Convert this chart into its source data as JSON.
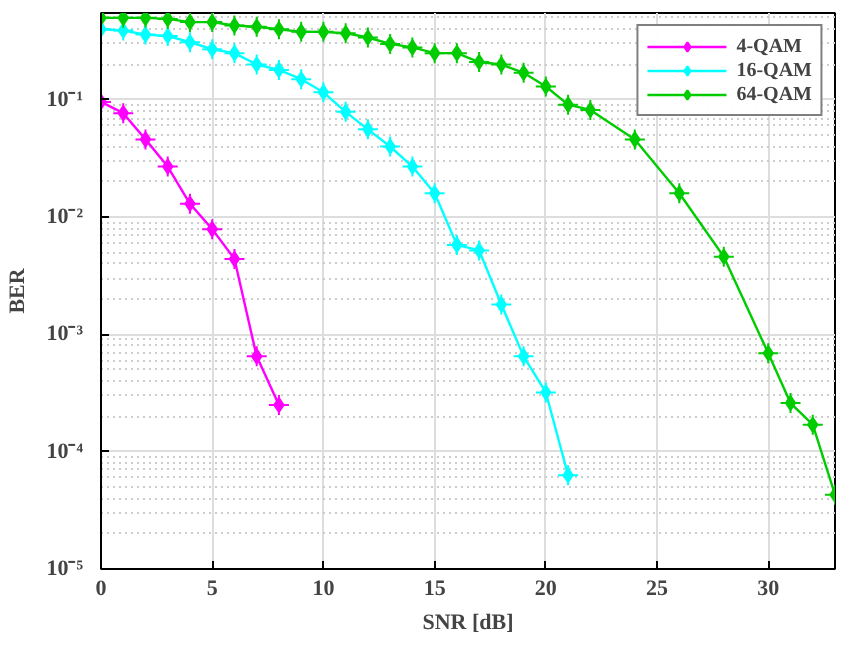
{
  "chart_data": {
    "type": "line",
    "xlabel": "SNR [dB]",
    "ylabel": "BER",
    "log": "y",
    "grid": true,
    "legend": "top right",
    "marker": "diamond",
    "line_style": "solid",
    "xlim": [
      0,
      33
    ],
    "xticks": [
      0,
      5,
      10,
      15,
      20,
      25,
      30
    ],
    "ylim": [
      1e-05,
      0.55
    ],
    "yticks": [
      {
        "value": 1e-05,
        "label": "10⁻⁵"
      },
      {
        "value": 0.0001,
        "label": "10⁻⁴"
      },
      {
        "value": 0.001,
        "label": "10⁻³"
      },
      {
        "value": 0.01,
        "label": "10⁻²"
      },
      {
        "value": 0.1,
        "label": "10⁻¹"
      }
    ],
    "series": [
      {
        "name": "4-QAM",
        "color": "#ff00ff",
        "x": [
          0,
          1,
          2,
          3,
          4,
          5,
          6,
          7,
          8
        ],
        "values": [
          0.096,
          0.077,
          0.046,
          0.027,
          0.013,
          0.0079,
          0.0044,
          0.00065,
          0.00025
        ]
      },
      {
        "name": "16-QAM",
        "color": "#00ffff",
        "x": [
          0,
          1,
          2,
          3,
          4,
          5,
          6,
          7,
          8,
          9,
          10,
          11,
          12,
          13,
          14,
          15,
          16,
          17,
          18,
          19,
          20,
          21
        ],
        "values": [
          0.4,
          0.39,
          0.36,
          0.35,
          0.31,
          0.27,
          0.25,
          0.2,
          0.18,
          0.15,
          0.116,
          0.079,
          0.056,
          0.04,
          0.027,
          0.016,
          0.0058,
          0.0052,
          0.0018,
          0.00065,
          0.00032,
          6.3e-05
        ]
      },
      {
        "name": "64-QAM",
        "color": "#00cc00",
        "x": [
          0,
          1,
          2,
          3,
          4,
          5,
          6,
          7,
          8,
          9,
          10,
          11,
          12,
          13,
          14,
          15,
          16,
          17,
          18,
          19,
          20,
          21,
          22,
          24,
          26,
          28,
          30,
          31,
          32,
          33
        ],
        "values": [
          0.5,
          0.5,
          0.5,
          0.49,
          0.46,
          0.46,
          0.43,
          0.42,
          0.4,
          0.38,
          0.38,
          0.37,
          0.34,
          0.3,
          0.28,
          0.25,
          0.25,
          0.21,
          0.2,
          0.17,
          0.13,
          0.091,
          0.082,
          0.046,
          0.016,
          0.0046,
          0.00069,
          0.00026,
          0.00017,
          4.3e-05
        ]
      }
    ]
  }
}
